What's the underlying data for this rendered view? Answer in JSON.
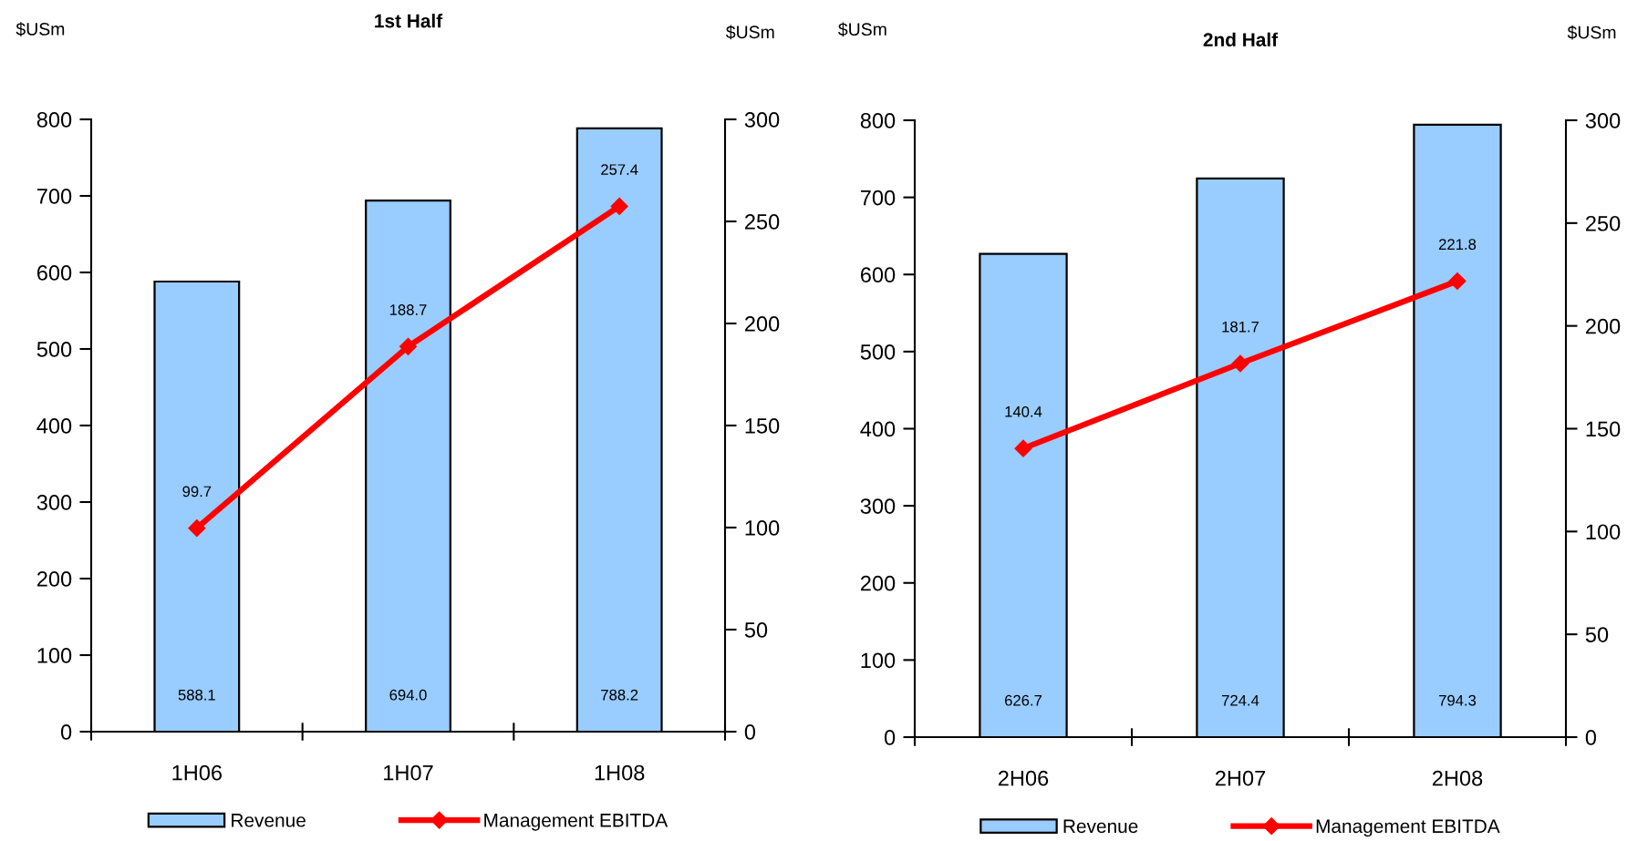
{
  "chart_data": [
    {
      "type": "bar",
      "title": "1st Half",
      "ylabel": "$USm",
      "y2label": "$USm",
      "categories": [
        "1H06",
        "1H07",
        "1H08"
      ],
      "series": [
        {
          "name": "Revenue",
          "color": "#99ccff",
          "values": [
            588.1,
            694.0,
            788.2
          ],
          "value_labels": [
            "588.1",
            "694.0",
            "788.2"
          ]
        },
        {
          "name": "Management EBITDA",
          "type": "line",
          "axis": "y2",
          "color": "#ff0000",
          "values": [
            99.7,
            188.7,
            257.4
          ],
          "value_labels": [
            "99.7",
            "188.7",
            "257.4"
          ]
        }
      ],
      "ylim": [
        0,
        800
      ],
      "yticks": [
        0,
        100,
        200,
        300,
        400,
        500,
        600,
        700,
        800
      ],
      "y2lim": [
        0,
        300
      ],
      "y2ticks": [
        0,
        50,
        100,
        150,
        200,
        250,
        300
      ],
      "legend": "bottom",
      "marker": "diamond",
      "line_style": "solid",
      "grid": false
    },
    {
      "type": "bar",
      "title": "2nd Half",
      "ylabel": "$USm",
      "y2label": "$USm",
      "categories": [
        "2H06",
        "2H07",
        "2H08"
      ],
      "series": [
        {
          "name": "Revenue",
          "color": "#99ccff",
          "values": [
            626.7,
            724.4,
            794.3
          ],
          "value_labels": [
            "626.7",
            "724.4",
            "794.3"
          ]
        },
        {
          "name": "Management EBITDA",
          "type": "line",
          "axis": "y2",
          "color": "#ff0000",
          "values": [
            140.4,
            181.7,
            221.8
          ],
          "value_labels": [
            "140.4",
            "181.7",
            "221.8"
          ]
        }
      ],
      "ylim": [
        0,
        800
      ],
      "yticks": [
        0,
        100,
        200,
        300,
        400,
        500,
        600,
        700,
        800
      ],
      "y2lim": [
        0,
        300
      ],
      "y2ticks": [
        0,
        50,
        100,
        150,
        200,
        250,
        300
      ],
      "legend": "bottom",
      "marker": "diamond",
      "line_style": "solid",
      "grid": false
    }
  ]
}
